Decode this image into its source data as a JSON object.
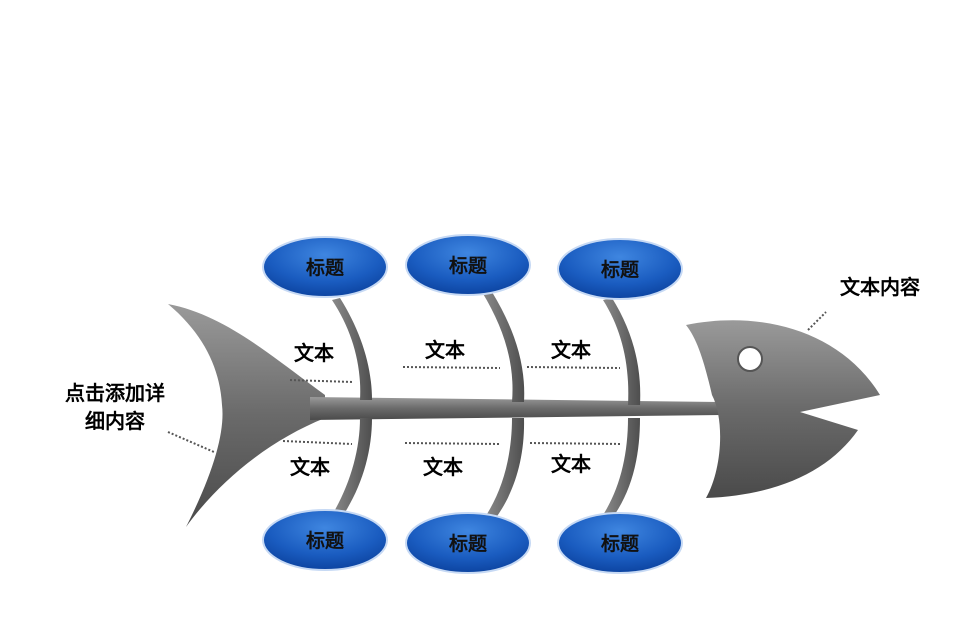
{
  "diagram": {
    "top_titles": [
      "标题",
      "标题",
      "标题"
    ],
    "bottom_titles": [
      "标题",
      "标题",
      "标题"
    ],
    "top_texts": [
      "文本",
      "文本",
      "文本"
    ],
    "bottom_texts": [
      "文本",
      "文本",
      "文本"
    ],
    "tail_note": [
      "点击添加详",
      "细内容"
    ],
    "head_note": "文本内容"
  },
  "colors": {
    "fish_dark": "#4a4a4a",
    "fish_light": "#9a9a9a",
    "oval_dark": "#0a3f9a",
    "oval_light": "#3f86e0",
    "connector": "#555555"
  }
}
